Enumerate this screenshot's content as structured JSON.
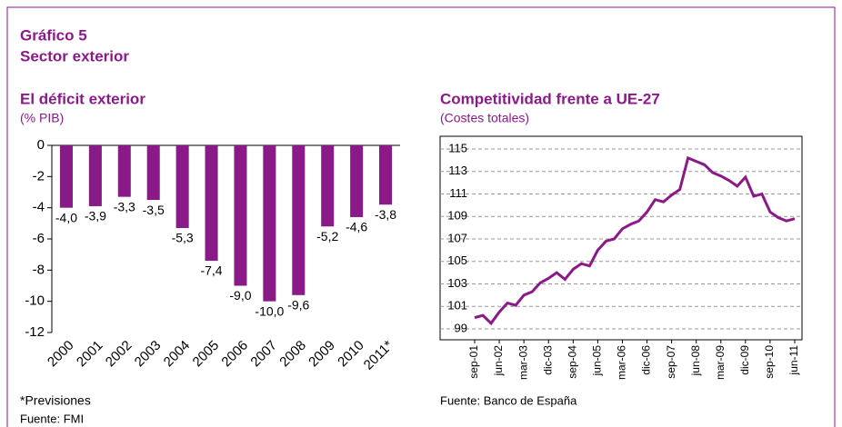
{
  "header": {
    "title": "Gráfico 5",
    "subtitle": "Sector exterior"
  },
  "chart_data": [
    {
      "type": "bar",
      "title": "El déficit exterior",
      "subtitle": "(% PIB)",
      "categories": [
        "2000",
        "2001",
        "2002",
        "2003",
        "2004",
        "2005",
        "2006",
        "2007",
        "2008",
        "2009",
        "2010",
        "2011*"
      ],
      "values": [
        -4.0,
        -3.9,
        -3.3,
        -3.5,
        -5.3,
        -7.4,
        -9.0,
        -10.0,
        -9.6,
        -5.2,
        -4.6,
        -3.8
      ],
      "value_labels": [
        "-4,0",
        "-3,9",
        "-3,3",
        "-3,5",
        "-5,3",
        "-7,4",
        "-9,0",
        "-10,0",
        "-9,6",
        "-5,2",
        "-4,6",
        "-3,8"
      ],
      "color": "#8a1a88",
      "ylim": [
        -12,
        0
      ],
      "yticks": [
        0,
        -2,
        -4,
        -6,
        -8,
        -10,
        -12
      ],
      "note": "*Previsiones",
      "source": "Fuente: FMI"
    },
    {
      "type": "line",
      "title": "Competitividad frente a UE-27",
      "subtitle": "(Costes totales)",
      "categories": [
        "sep-01",
        null,
        null,
        "jun-02",
        null,
        null,
        "mar-03",
        null,
        null,
        "dic-03",
        null,
        null,
        "sep-04",
        null,
        null,
        "jun-05",
        null,
        null,
        "mar-06",
        null,
        null,
        "dic-06",
        null,
        null,
        "sep-07",
        null,
        null,
        "jun-08",
        null,
        null,
        "mar-09",
        null,
        null,
        "dic-09",
        null,
        null,
        "sep-10",
        null,
        null,
        "jun-11"
      ],
      "values": [
        100.0,
        100.2,
        99.5,
        100.5,
        101.3,
        101.1,
        102.0,
        102.3,
        103.1,
        103.5,
        104.0,
        103.4,
        104.3,
        104.8,
        104.6,
        106.0,
        106.8,
        107.0,
        107.9,
        108.3,
        108.6,
        109.4,
        110.5,
        110.3,
        110.9,
        111.4,
        114.2,
        113.9,
        113.6,
        112.9,
        112.6,
        112.2,
        111.7,
        112.5,
        110.8,
        111.0,
        109.4,
        108.9,
        108.6,
        108.8
      ],
      "color": "#8a1a88",
      "ylim": [
        99,
        115
      ],
      "yticks": [
        99,
        101,
        103,
        105,
        107,
        109,
        111,
        113,
        115
      ],
      "grid": true,
      "source": "Fuente: Banco de España"
    }
  ]
}
